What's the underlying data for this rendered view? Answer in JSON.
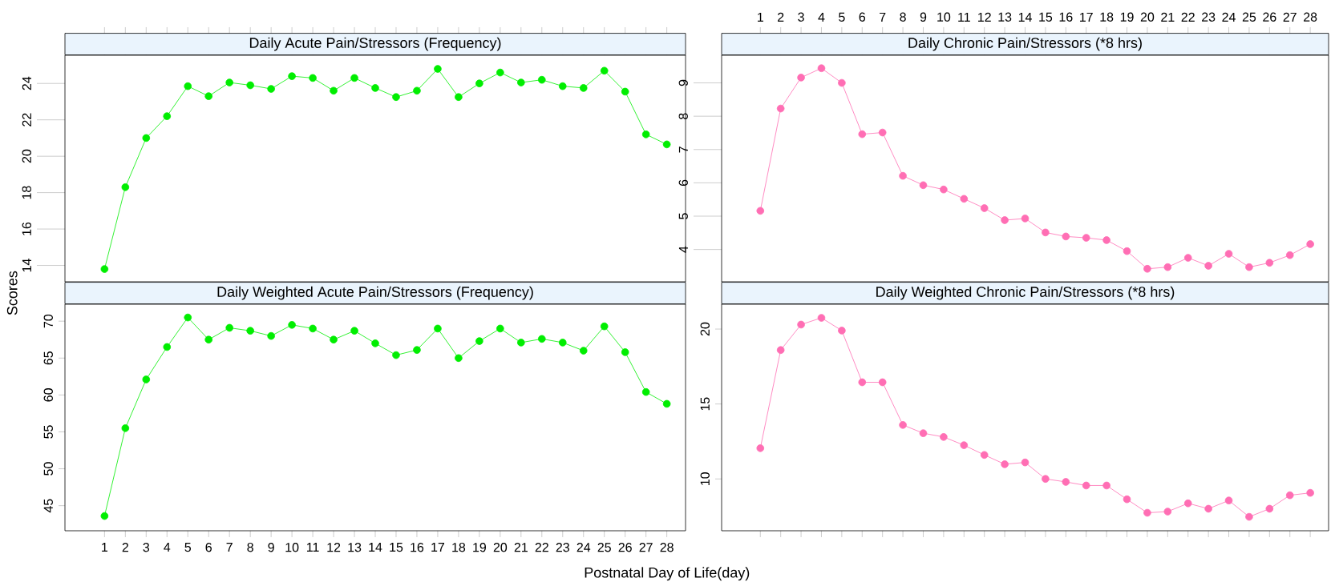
{
  "chart_data": [
    {
      "type": "line",
      "title": "Daily Acute Pain/Stressors (Frequency)",
      "ylabel": "Scores",
      "x": [
        1,
        2,
        3,
        4,
        5,
        6,
        7,
        8,
        9,
        10,
        11,
        12,
        13,
        14,
        15,
        16,
        17,
        18,
        19,
        20,
        21,
        22,
        23,
        24,
        25,
        26,
        27,
        28
      ],
      "xlim": [
        -0.9,
        28.9
      ],
      "xticks": [
        1,
        2,
        3,
        4,
        5,
        6,
        7,
        8,
        9,
        10,
        11,
        12,
        13,
        14,
        15,
        16,
        17,
        18,
        19,
        20,
        21,
        22,
        23,
        24,
        25,
        26,
        27,
        28
      ],
      "ylim": [
        13.1,
        25.55
      ],
      "yticks": [
        14,
        16,
        18,
        20,
        22,
        24
      ],
      "marker": "circle",
      "line_style": "solid",
      "tick_labels": "y",
      "series": [
        {
          "color": "#00ee00",
          "values": [
            13.8,
            18.3,
            21.0,
            22.2,
            23.85,
            23.3,
            24.05,
            23.9,
            23.7,
            24.4,
            24.3,
            23.6,
            24.3,
            23.75,
            23.25,
            23.6,
            24.8,
            23.25,
            24.0,
            24.6,
            24.05,
            24.2,
            23.85,
            23.75,
            24.7,
            23.55,
            21.2,
            20.65
          ]
        }
      ]
    },
    {
      "type": "line",
      "title": "Daily Chronic Pain/Stressors (*8 hrs)",
      "x": [
        1,
        2,
        3,
        4,
        5,
        6,
        7,
        8,
        9,
        10,
        11,
        12,
        13,
        14,
        15,
        16,
        17,
        18,
        19,
        20,
        21,
        22,
        23,
        24,
        25,
        26,
        27,
        28
      ],
      "xlim": [
        -0.9,
        28.9
      ],
      "xticks": [
        1,
        2,
        3,
        4,
        5,
        6,
        7,
        8,
        9,
        10,
        11,
        12,
        13,
        14,
        15,
        16,
        17,
        18,
        19,
        20,
        21,
        22,
        23,
        24,
        25,
        26,
        27,
        28
      ],
      "ylim": [
        3.03,
        9.83
      ],
      "yticks": [
        4,
        5,
        6,
        7,
        8,
        9
      ],
      "marker": "circle",
      "line_style": "solid",
      "series": [
        {
          "color": "#ff6eb4",
          "values": [
            5.16,
            8.23,
            9.16,
            9.44,
            9.0,
            7.46,
            7.51,
            6.21,
            5.93,
            5.8,
            5.52,
            5.24,
            4.88,
            4.93,
            4.51,
            4.39,
            4.35,
            4.28,
            3.95,
            3.42,
            3.47,
            3.75,
            3.51,
            3.87,
            3.47,
            3.6,
            3.83,
            4.16
          ]
        }
      ]
    },
    {
      "type": "line",
      "title": "Daily Weighted Acute Pain/Stressors (Frequency)",
      "xlabel": "Postnatal Day of Life(day)",
      "x": [
        1,
        2,
        3,
        4,
        5,
        6,
        7,
        8,
        9,
        10,
        11,
        12,
        13,
        14,
        15,
        16,
        17,
        18,
        19,
        20,
        21,
        22,
        23,
        24,
        25,
        26,
        27,
        28
      ],
      "xlim": [
        -0.9,
        28.9
      ],
      "xticks": [
        1,
        2,
        3,
        4,
        5,
        6,
        7,
        8,
        9,
        10,
        11,
        12,
        13,
        14,
        15,
        16,
        17,
        18,
        19,
        20,
        21,
        22,
        23,
        24,
        25,
        26,
        27,
        28
      ],
      "ylim": [
        41.6,
        72.3
      ],
      "yticks": [
        45,
        50,
        55,
        60,
        65,
        70
      ],
      "marker": "circle",
      "line_style": "solid",
      "series": [
        {
          "color": "#00ee00",
          "values": [
            43.6,
            55.5,
            62.1,
            66.5,
            70.5,
            67.5,
            69.1,
            68.7,
            68.0,
            69.5,
            69.0,
            67.5,
            68.7,
            67.0,
            65.4,
            66.1,
            69.0,
            65.0,
            67.3,
            69.0,
            67.1,
            67.6,
            67.1,
            66.0,
            69.3,
            65.8,
            60.4,
            58.8
          ]
        }
      ]
    },
    {
      "type": "line",
      "title": "Daily Weighted Chronic Pain/Stressors (*8 hrs)",
      "x": [
        1,
        2,
        3,
        4,
        5,
        6,
        7,
        8,
        9,
        10,
        11,
        12,
        13,
        14,
        15,
        16,
        17,
        18,
        19,
        20,
        21,
        22,
        23,
        24,
        25,
        26,
        27,
        28
      ],
      "xlim": [
        -0.9,
        28.9
      ],
      "xticks": [
        1,
        2,
        3,
        4,
        5,
        6,
        7,
        8,
        9,
        10,
        11,
        12,
        13,
        14,
        15,
        16,
        17,
        18,
        19,
        20,
        21,
        22,
        23,
        24,
        25,
        26,
        27,
        28
      ],
      "ylim": [
        6.54,
        21.66
      ],
      "yticks": [
        10,
        15,
        20
      ],
      "marker": "circle",
      "line_style": "solid",
      "tick_labels": "y",
      "series": [
        {
          "color": "#ff6eb4",
          "values": [
            12.05,
            18.6,
            20.3,
            20.75,
            19.9,
            16.45,
            16.45,
            13.6,
            13.05,
            12.8,
            12.25,
            11.6,
            10.98,
            11.1,
            10.0,
            9.8,
            9.56,
            9.56,
            8.64,
            7.74,
            7.82,
            8.37,
            8.01,
            8.56,
            7.47,
            8.01,
            8.91,
            9.07
          ]
        }
      ]
    }
  ]
}
